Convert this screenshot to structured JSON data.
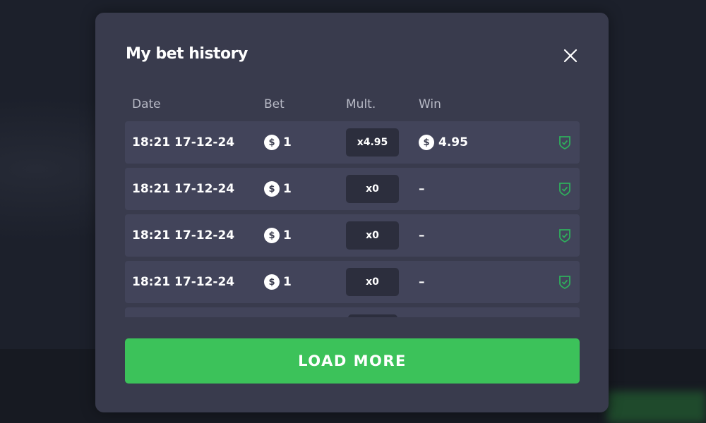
{
  "modal": {
    "title": "My bet history",
    "close_icon": "close-icon"
  },
  "columns": {
    "date": "Date",
    "bet": "Bet",
    "mult": "Mult.",
    "win": "Win"
  },
  "rows": [
    {
      "date": "18:21 17-12-24",
      "bet": "1",
      "mult": "x4.95",
      "win": "4.95",
      "has_win": true
    },
    {
      "date": "18:21 17-12-24",
      "bet": "1",
      "mult": "x0",
      "win": "–",
      "has_win": false
    },
    {
      "date": "18:21 17-12-24",
      "bet": "1",
      "mult": "x0",
      "win": "–",
      "has_win": false
    },
    {
      "date": "18:21 17-12-24",
      "bet": "1",
      "mult": "x0",
      "win": "–",
      "has_win": false
    }
  ],
  "currency_symbol": "$",
  "load_more": "LOAD MORE",
  "colors": {
    "accent": "#3cc25a",
    "shield": "#2fae5c",
    "modal_bg": "#393b4d",
    "row_bg": "#42445a"
  }
}
